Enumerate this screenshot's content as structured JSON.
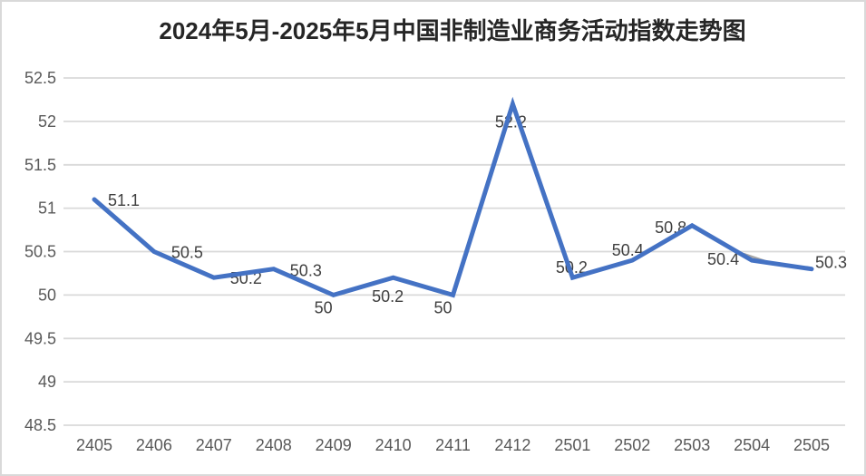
{
  "chart_data": {
    "type": "line",
    "title": "2024年5月-2025年5月中国非制造业商务活动指数走势图",
    "categories": [
      "2405",
      "2406",
      "2407",
      "2408",
      "2409",
      "2410",
      "2411",
      "2412",
      "2501",
      "2502",
      "2503",
      "2504",
      "2505"
    ],
    "values": [
      51.1,
      50.5,
      50.2,
      50.3,
      50,
      50.2,
      50,
      52.2,
      50.2,
      50.4,
      50.8,
      50.4,
      50.3
    ],
    "data_labels": [
      "51.1",
      "50.5",
      "50.2",
      "50.3",
      "50",
      "50.2",
      "50",
      "52.2",
      "50.2",
      "50.4",
      "50.8",
      "50.4",
      "50.3"
    ],
    "xlabel": "",
    "ylabel": "",
    "ylim": [
      48.5,
      52.5
    ],
    "yticks": [
      52.5,
      52,
      51.5,
      51,
      50.5,
      50,
      49.5,
      49,
      48.5
    ],
    "grid": true,
    "legend": "none",
    "colors": {
      "line": "#4472C4",
      "gridline": "#D9D9D9",
      "axis_tick_text": "#595959",
      "data_label_text": "#404040",
      "title_text": "#262626",
      "chart_border": "#D9D9D9",
      "leader_line": "#A6A6A6",
      "background": "#FFFFFF"
    }
  }
}
